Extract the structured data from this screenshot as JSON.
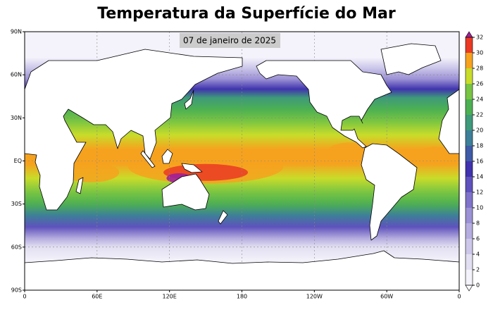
{
  "chart_data": {
    "type": "map",
    "title": "Temperatura da Superfície do Mar",
    "annotation": "07 de janeiro de 2025",
    "xlim": [
      0,
      360
    ],
    "ylim": [
      -90,
      90
    ],
    "xticks": [
      0,
      {
        "value": 60,
        "label": "60E"
      },
      {
        "value": 120,
        "label": "120E"
      },
      180,
      {
        "value": 240,
        "label": "120W"
      },
      {
        "value": 300,
        "label": "60W"
      },
      {
        "value": 360,
        "label": "0"
      }
    ],
    "yticks": [
      {
        "value": 90,
        "label": "90N"
      },
      {
        "value": 60,
        "label": "60N"
      },
      {
        "value": 30,
        "label": "30N"
      },
      {
        "value": 0,
        "label": "EQ"
      },
      {
        "value": -30,
        "label": "30S"
      },
      {
        "value": -60,
        "label": "60S"
      },
      {
        "value": -90,
        "label": "90S"
      }
    ],
    "grid": true,
    "colorbar": {
      "ticks": [
        0,
        2,
        4,
        6,
        8,
        10,
        12,
        14,
        16,
        18,
        20,
        22,
        24,
        26,
        28,
        30,
        32
      ],
      "colors": [
        "#f4f2fa",
        "#e2dff2",
        "#cdc8ea",
        "#b5addf",
        "#9b91d5",
        "#7e72ca",
        "#5f52bd",
        "#4033ad",
        "#3f5aa6",
        "#3d7f98",
        "#3e9a7a",
        "#4cb052",
        "#78c443",
        "#c9dc2a",
        "#f6a21e",
        "#ea3a24"
      ],
      "under_color": "#ffffff",
      "over_color": "#a0209a"
    }
  }
}
